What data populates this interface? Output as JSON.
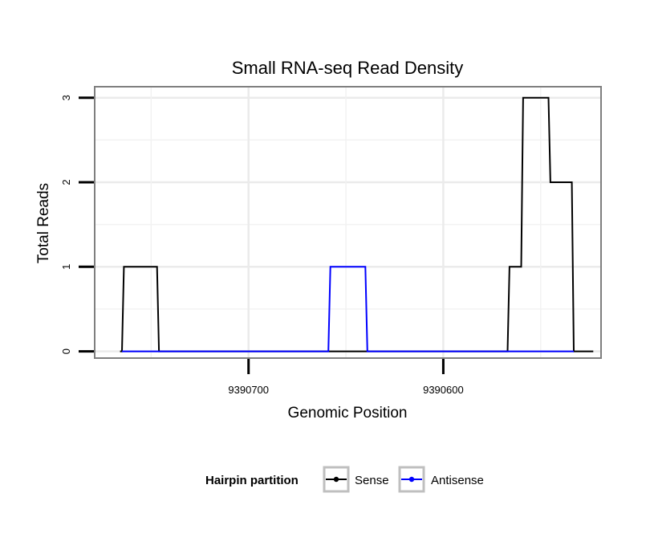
{
  "chart_data": {
    "type": "line",
    "title": "Small RNA-seq Read Density",
    "xlabel": "Genomic Position",
    "ylabel": "Total Reads",
    "x_reversed": true,
    "xlim": [
      9390779,
      9390519
    ],
    "ylim": [
      -0.08,
      3.13
    ],
    "x_ticks": [
      9390700,
      9390600
    ],
    "x_tick_labels": [
      "9390700",
      "9390600"
    ],
    "y_ticks": [
      0,
      1,
      2,
      3
    ],
    "y_tick_labels": [
      "0",
      "1",
      "2",
      "3"
    ],
    "grid": true,
    "legend": {
      "title": "Hairpin partition",
      "position": "bottom",
      "entries": [
        {
          "label": "Sense",
          "color": "#000000"
        },
        {
          "label": "Antisense",
          "color": "#0000ff"
        }
      ]
    },
    "series": [
      {
        "name": "Sense",
        "color": "#000000",
        "x": [
          9390766,
          9390765,
          9390764,
          9390747,
          9390746,
          9390660,
          9390659,
          9390622,
          9390621,
          9390567,
          9390566,
          9390560,
          9390559,
          9390546,
          9390545,
          9390534,
          9390533,
          9390532,
          9390523
        ],
        "y": [
          0,
          0,
          1,
          1,
          0,
          0,
          0,
          0,
          0,
          0,
          1,
          1,
          3,
          3,
          2,
          2,
          0,
          0,
          0
        ]
      },
      {
        "name": "Antisense",
        "color": "#0000ff",
        "x": [
          9390765,
          9390747,
          9390660,
          9390659,
          9390658,
          9390640,
          9390639,
          9390622,
          9390567,
          9390533
        ],
        "y": [
          0,
          0,
          0,
          0,
          1,
          1,
          0,
          0,
          0,
          0
        ]
      }
    ]
  }
}
